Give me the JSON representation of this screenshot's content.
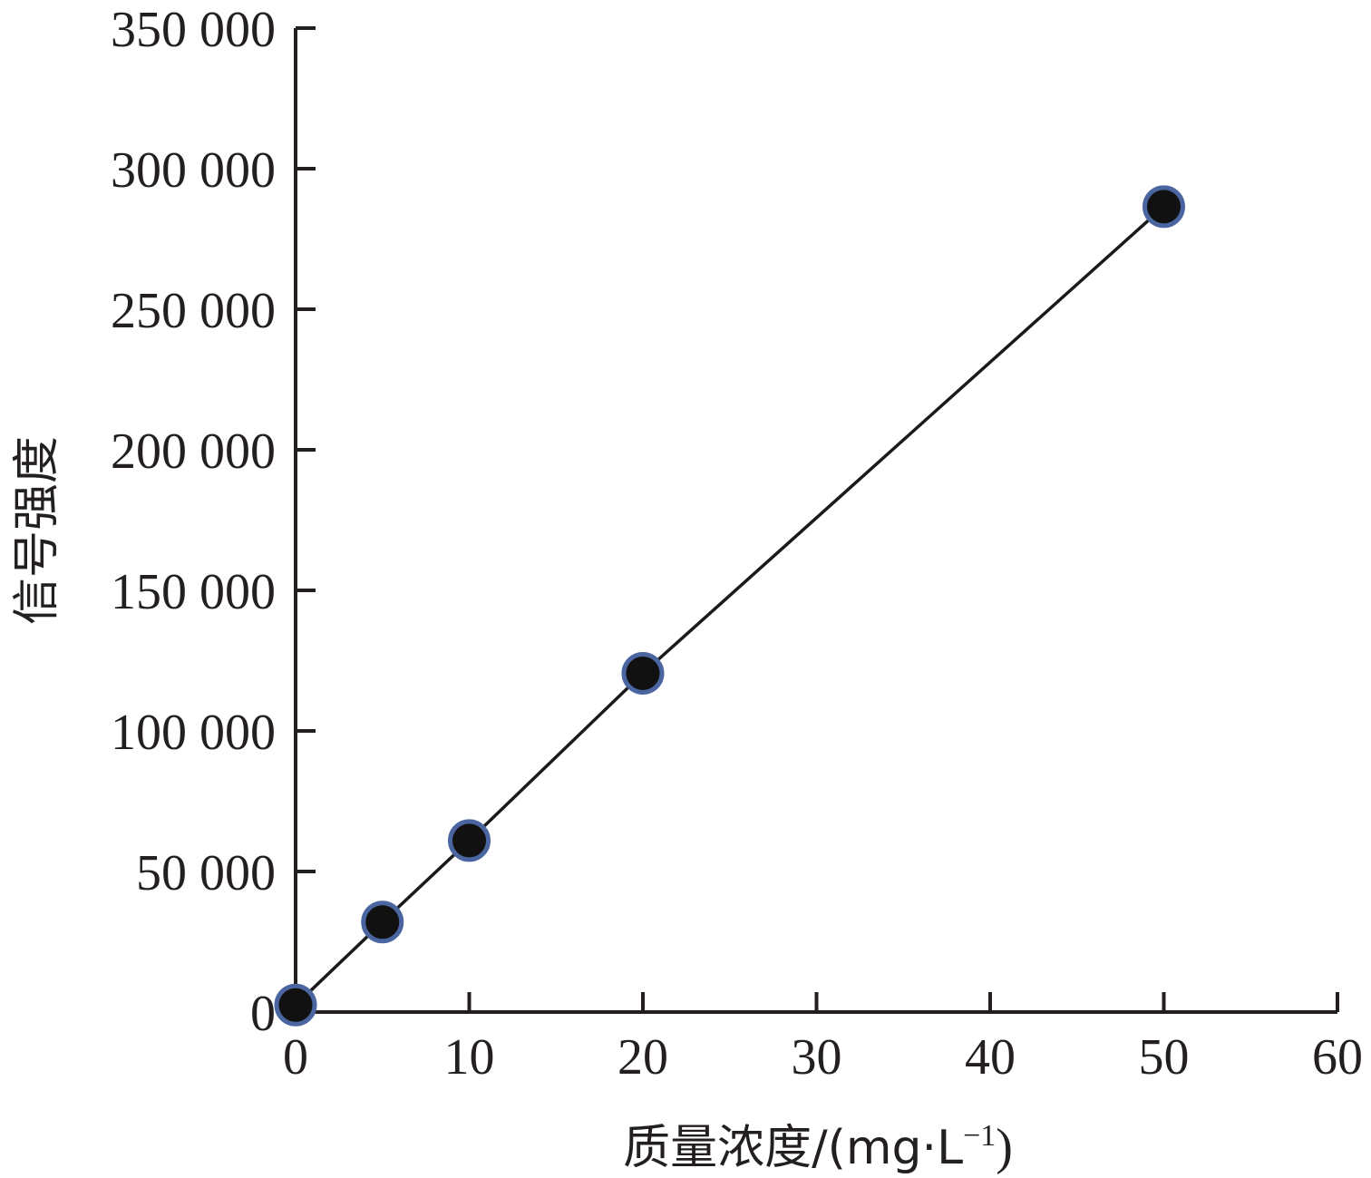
{
  "chart_data": {
    "type": "line",
    "title": "",
    "xlabel": "质量浓度/(mg·L",
    "xlabel_superscript": "−1",
    "xlabel_suffix": ")",
    "ylabel": "信号强度",
    "xlim": [
      0,
      60
    ],
    "ylim": [
      0,
      350000
    ],
    "x_ticks": [
      0,
      10,
      20,
      30,
      40,
      50,
      60
    ],
    "x_tick_labels": [
      "0",
      "10",
      "20",
      "30",
      "40",
      "50",
      "60"
    ],
    "y_ticks": [
      0,
      50000,
      100000,
      150000,
      200000,
      250000,
      300000,
      350000
    ],
    "y_tick_labels": [
      "0",
      "50 000",
      "100 000",
      "150 000",
      "200 000",
      "250 000",
      "300 000",
      "350 000"
    ],
    "grid": false,
    "legend": "none",
    "series": [
      {
        "x": [
          0,
          5,
          10,
          20,
          50
        ],
        "values": [
          2500,
          32000,
          61000,
          120500,
          286500
        ]
      }
    ],
    "colors": {
      "axis": "#231f20",
      "line": "#1a1a1a",
      "marker_fill": "#111111",
      "marker_edge": "#4a65a0"
    }
  }
}
